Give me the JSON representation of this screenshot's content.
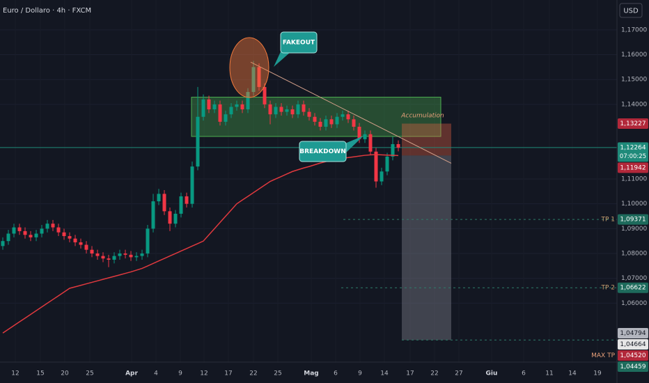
{
  "header": {
    "title": "Euro / Dollaro · 4h · FXCM",
    "currency": "USD"
  },
  "chart_data": {
    "type": "candlestick",
    "up_color": "#089981",
    "down_color": "#f23645",
    "open": [
      1.083,
      1.085,
      1.088,
      1.0905,
      1.089,
      1.0875,
      1.0865,
      1.088,
      1.09,
      1.092,
      1.0905,
      1.0885,
      1.087,
      1.086,
      1.0845,
      1.0835,
      1.0815,
      1.08,
      1.079,
      1.078,
      1.0775,
      1.079,
      1.08,
      1.0795,
      1.0785,
      1.079,
      1.08,
      1.09,
      1.101,
      1.104,
      1.097,
      1.092,
      1.096,
      1.103,
      1.1,
      1.115,
      1.135,
      1.142,
      1.138,
      1.14,
      1.133,
      1.136,
      1.139,
      1.14,
      1.138,
      1.145,
      1.155,
      1.147,
      1.14,
      1.136,
      1.139,
      1.137,
      1.138,
      1.136,
      1.14,
      1.137,
      1.135,
      1.133,
      1.131,
      1.134,
      1.132,
      1.135,
      1.136,
      1.134,
      1.131,
      1.126,
      1.128,
      1.121,
      1.109,
      1.113,
      1.119,
      1.124
    ],
    "high": [
      1.0865,
      1.0895,
      1.092,
      1.092,
      1.0905,
      1.089,
      1.0895,
      1.0915,
      1.0935,
      1.0935,
      1.092,
      1.09,
      1.0885,
      1.0875,
      1.086,
      1.085,
      1.083,
      1.0815,
      1.0805,
      1.0795,
      1.0805,
      1.0815,
      1.0815,
      1.081,
      1.0805,
      1.0815,
      1.0915,
      1.104,
      1.106,
      1.1055,
      1.0985,
      1.0975,
      1.1045,
      1.1045,
      1.117,
      1.147,
      1.144,
      1.1435,
      1.1415,
      1.1415,
      1.1375,
      1.1405,
      1.1415,
      1.1415,
      1.1465,
      1.1575,
      1.1565,
      1.1485,
      1.1415,
      1.1405,
      1.1405,
      1.1395,
      1.1395,
      1.1415,
      1.1415,
      1.1385,
      1.1365,
      1.1345,
      1.1355,
      1.1355,
      1.1365,
      1.1375,
      1.1375,
      1.1355,
      1.1325,
      1.1295,
      1.1295,
      1.1225,
      1.1145,
      1.1205,
      1.127,
      1.1255
    ],
    "low": [
      1.0815,
      1.0835,
      1.0865,
      1.0875,
      1.086,
      1.085,
      1.085,
      1.0865,
      1.0885,
      1.089,
      1.087,
      1.0855,
      1.0845,
      1.083,
      1.082,
      1.08,
      1.0785,
      1.0775,
      1.0765,
      1.0745,
      1.076,
      1.0775,
      1.078,
      1.077,
      1.077,
      1.0775,
      1.0785,
      1.0885,
      1.0995,
      1.0955,
      1.089,
      1.0905,
      1.0945,
      1.0985,
      1.0985,
      1.1135,
      1.1335,
      1.1365,
      1.1365,
      1.1315,
      1.1315,
      1.1345,
      1.1375,
      1.1365,
      1.1365,
      1.1435,
      1.1455,
      1.1385,
      1.132,
      1.1345,
      1.1355,
      1.1355,
      1.1345,
      1.1345,
      1.1355,
      1.1335,
      1.1315,
      1.1295,
      1.1295,
      1.1305,
      1.1305,
      1.1335,
      1.1325,
      1.1295,
      1.1245,
      1.1245,
      1.1195,
      1.1065,
      1.1075,
      1.1115,
      1.1175,
      1.1211
    ],
    "close": [
      1.085,
      1.088,
      1.0905,
      1.089,
      1.0875,
      1.0865,
      1.088,
      1.09,
      1.092,
      1.0905,
      1.0885,
      1.087,
      1.086,
      1.0845,
      1.0835,
      1.0815,
      1.08,
      1.079,
      1.078,
      1.0775,
      1.079,
      1.08,
      1.0795,
      1.0785,
      1.079,
      1.08,
      1.09,
      1.101,
      1.104,
      1.097,
      1.092,
      1.096,
      1.103,
      1.1,
      1.115,
      1.135,
      1.142,
      1.138,
      1.14,
      1.133,
      1.136,
      1.139,
      1.14,
      1.138,
      1.145,
      1.155,
      1.147,
      1.14,
      1.136,
      1.139,
      1.137,
      1.138,
      1.136,
      1.14,
      1.137,
      1.135,
      1.133,
      1.131,
      1.134,
      1.132,
      1.135,
      1.136,
      1.134,
      1.131,
      1.126,
      1.128,
      1.121,
      1.109,
      1.113,
      1.119,
      1.124,
      1.1226
    ],
    "moving_average": {
      "color": "#e0393e",
      "values": [
        1.048,
        1.0495,
        1.051,
        1.0525,
        1.054,
        1.0555,
        1.057,
        1.0585,
        1.06,
        1.0615,
        1.063,
        1.0645,
        1.066,
        1.0666,
        1.0672,
        1.0678,
        1.0684,
        1.069,
        1.0696,
        1.0702,
        1.0708,
        1.0714,
        1.072,
        1.0726,
        1.0733,
        1.074,
        1.075,
        1.076,
        1.077,
        1.078,
        1.079,
        1.08,
        1.081,
        1.082,
        1.083,
        1.084,
        1.085,
        1.0875,
        1.09,
        1.0925,
        1.095,
        1.0975,
        1.1,
        1.1015,
        1.103,
        1.1045,
        1.106,
        1.1075,
        1.109,
        1.11,
        1.111,
        1.112,
        1.113,
        1.1137,
        1.1144,
        1.115,
        1.1157,
        1.1164,
        1.117,
        1.1175,
        1.118,
        1.1183,
        1.1186,
        1.1189,
        1.1192,
        1.1195,
        1.1197,
        1.1198,
        1.1197,
        1.1196,
        1.1195,
        1.1194
      ]
    },
    "ylim": [
      1.0363,
      1.182
    ],
    "yticks": [
      {
        "value": 1.17,
        "label": "1,17000"
      },
      {
        "value": 1.16,
        "label": "1,16000"
      },
      {
        "value": 1.15,
        "label": "1,15000"
      },
      {
        "value": 1.14,
        "label": "1,14000"
      },
      {
        "value": 1.11,
        "label": "1,11000"
      },
      {
        "value": 1.1,
        "label": "1,10000"
      },
      {
        "value": 1.09,
        "label": "1,09000"
      },
      {
        "value": 1.08,
        "label": "1,08000"
      },
      {
        "value": 1.07,
        "label": "1,07000"
      },
      {
        "value": 1.06,
        "label": "1,06000"
      }
    ],
    "x_labels": [
      "12",
      "15",
      "20",
      "25",
      "Apr",
      "4",
      "9",
      "12",
      "17",
      "22",
      "25",
      "Mag",
      "6",
      "9",
      "14",
      "17",
      "22",
      "27",
      "Giu",
      "6",
      "11",
      "14",
      "19"
    ],
    "price_tags": [
      {
        "value": 1.13227,
        "label": "1,13227",
        "color": "#b2283a"
      },
      {
        "value": 1.12264,
        "label": "1,12264",
        "sub": "07:00:25",
        "color": "#1f8a7a"
      },
      {
        "value": 1.11942,
        "label": "1,11942",
        "color": "#b2283a"
      },
      {
        "value": 1.09371,
        "label": "1,09371",
        "tag": "TP 1",
        "color": "#1e6b5c"
      },
      {
        "value": 1.06622,
        "label": "1,06622",
        "tag": "TP 2",
        "color": "#1e6b5c"
      },
      {
        "value": 1.04794,
        "label": "1,04794",
        "color": "#b2b5be"
      },
      {
        "value": 1.04664,
        "label": "1,04664",
        "color": "#e6e6e6"
      },
      {
        "value": 1.0452,
        "label": "1,04520",
        "tag": "MAX TP",
        "color": "#b2283a"
      },
      {
        "value": 1.04459,
        "label": "1,04459",
        "color": "#1e6b5c"
      }
    ],
    "accumulation_zone": [
      1.1271,
      1.1429
    ],
    "trendline": [
      1.157,
      1.1163
    ],
    "annotations": {
      "fakeout": "FAKEOUT",
      "breakdown": "BREAKDOWN",
      "accumulation": "Accumulation"
    }
  }
}
